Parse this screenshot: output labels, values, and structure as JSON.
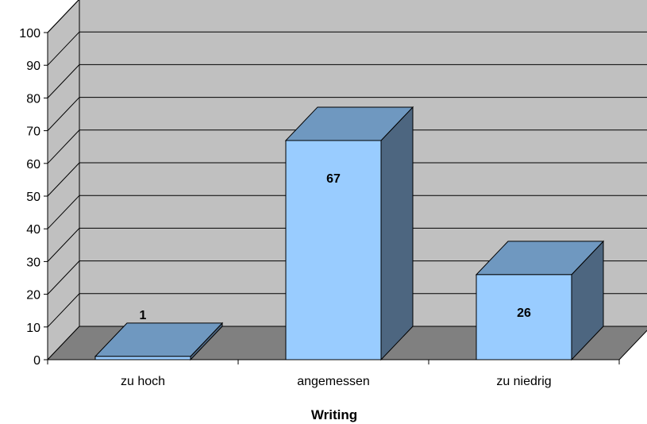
{
  "chart_data": {
    "type": "bar",
    "title": "",
    "xlabel": "Writing",
    "ylabel": "",
    "categories": [
      "zu hoch",
      "angemessen",
      "zu niedrig"
    ],
    "values": [
      1,
      67,
      26
    ],
    "data_labels": [
      "1",
      "67",
      "26"
    ],
    "ylim": [
      0,
      100
    ],
    "yticks": [
      "0",
      "10",
      "20",
      "30",
      "40",
      "50",
      "60",
      "70",
      "80",
      "90",
      "100"
    ],
    "grid": true,
    "style": "3d",
    "colors": {
      "bar_front": "#99ccff",
      "bar_top": "#6f98c0",
      "bar_side": "#4d6680",
      "wall": "#c0c0c0",
      "floor": "#808080",
      "grid": "#000000"
    }
  }
}
